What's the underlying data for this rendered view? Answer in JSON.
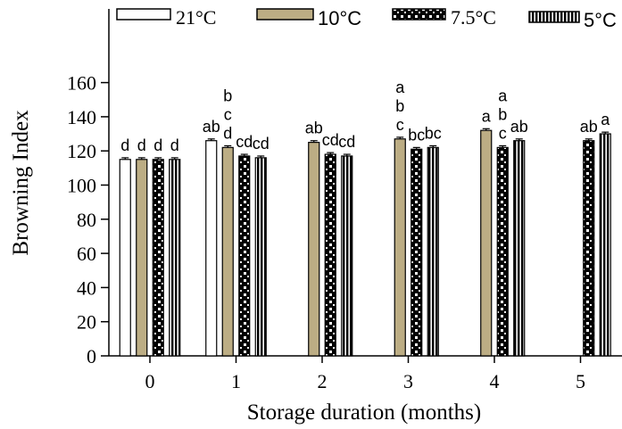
{
  "chart_data": {
    "type": "bar",
    "xlabel": "Storage duration (months)",
    "ylabel": "Browning Index",
    "ylim": [
      0,
      165
    ],
    "yticks": [
      0,
      20,
      40,
      60,
      80,
      100,
      120,
      140,
      160
    ],
    "categories": [
      "0",
      "1",
      "2",
      "3",
      "4",
      "5"
    ],
    "legend_position": "top",
    "series": [
      {
        "name": "21°C",
        "pattern": "white",
        "values": [
          115,
          126,
          null,
          null,
          null,
          null
        ],
        "errors": [
          1,
          1,
          null,
          null,
          null,
          null
        ],
        "letters": [
          "d",
          "ab",
          null,
          null,
          null,
          null
        ]
      },
      {
        "name": "10°C",
        "pattern": "khaki",
        "values": [
          115,
          122,
          125,
          127,
          132,
          null
        ],
        "errors": [
          1,
          1,
          1,
          1,
          1,
          null
        ],
        "letters": [
          "d",
          "b\nc\nd",
          "ab",
          "a\nb\nc",
          "a",
          null
        ]
      },
      {
        "name": "7.5°C",
        "pattern": "checker",
        "values": [
          115,
          117,
          118,
          121,
          122,
          126
        ],
        "errors": [
          1,
          1,
          1,
          1,
          1,
          1
        ],
        "letters": [
          "d",
          "cd",
          "cd",
          "bc",
          "a\nb\nc",
          "ab"
        ]
      },
      {
        "name": "5°C",
        "pattern": "vstripe",
        "values": [
          115,
          116,
          117,
          122,
          126,
          130
        ],
        "errors": [
          1,
          1,
          1,
          1,
          1,
          1
        ],
        "letters": [
          "d",
          "cd",
          "cd",
          "bc",
          "ab",
          "a"
        ]
      }
    ]
  },
  "colors": {
    "khaki": "#bcad84",
    "axis": "#000000",
    "background": "#ffffff"
  }
}
